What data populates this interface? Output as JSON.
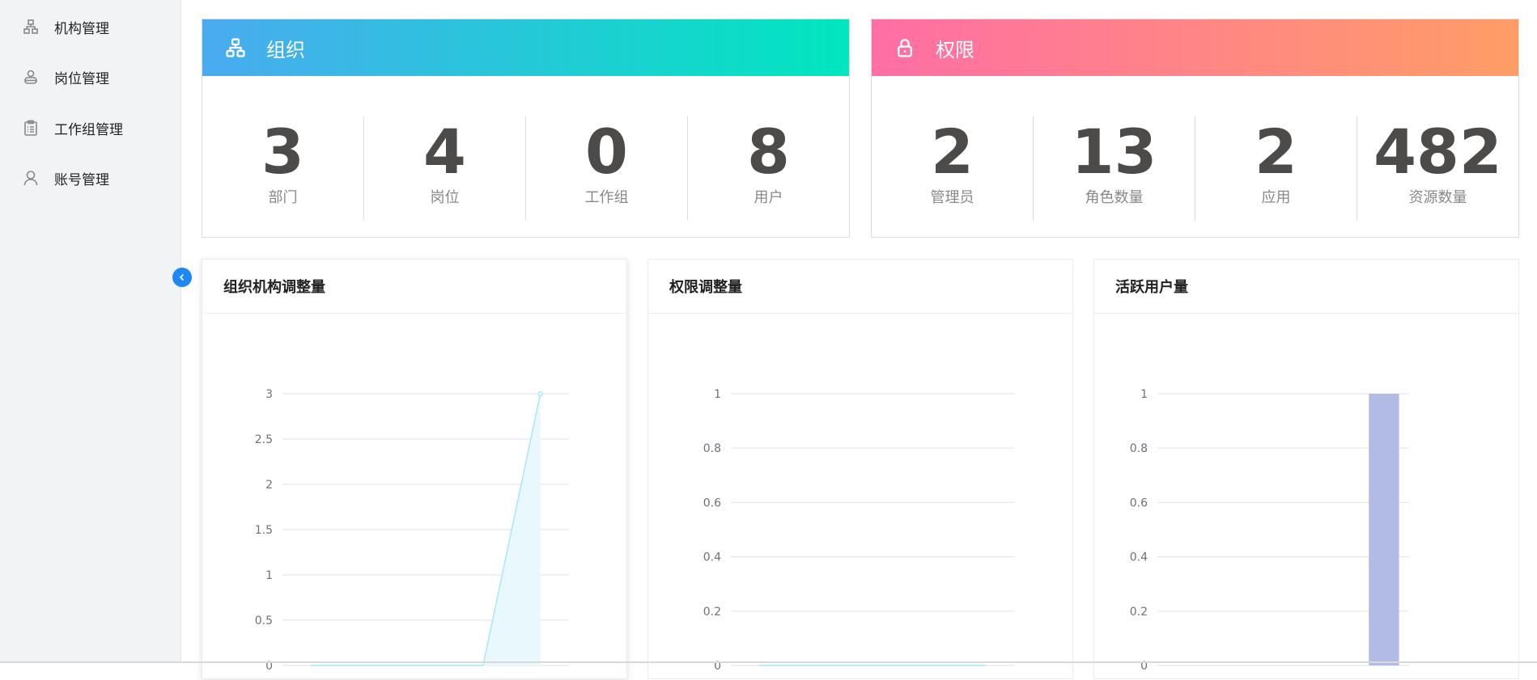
{
  "sidebar": {
    "items": [
      {
        "label": "机构管理",
        "icon": "org-tree-icon"
      },
      {
        "label": "岗位管理",
        "icon": "position-user-icon"
      },
      {
        "label": "工作组管理",
        "icon": "clipboard-icon"
      },
      {
        "label": "账号管理",
        "icon": "user-icon"
      }
    ]
  },
  "org_card": {
    "title": "组织",
    "icon": "org-tree-icon",
    "gradient": [
      "#4aabf0",
      "#00e6bf"
    ],
    "stats": [
      {
        "value": "3",
        "label": "部门"
      },
      {
        "value": "4",
        "label": "岗位"
      },
      {
        "value": "0",
        "label": "工作组"
      },
      {
        "value": "8",
        "label": "用户"
      }
    ]
  },
  "perm_card": {
    "title": "权限",
    "icon": "lock-icon",
    "gradient": [
      "#ff6ea5",
      "#ff9d66"
    ],
    "stats": [
      {
        "value": "2",
        "label": "管理员"
      },
      {
        "value": "13",
        "label": "角色数量"
      },
      {
        "value": "2",
        "label": "应用"
      },
      {
        "value": "482",
        "label": "资源数量"
      }
    ]
  },
  "charts": [
    {
      "title": "组织机构调整量"
    },
    {
      "title": "权限调整量"
    },
    {
      "title": "活跃用户量"
    }
  ],
  "chart_data": [
    {
      "type": "area",
      "values": [
        0,
        0,
        0,
        0,
        3
      ],
      "yticks": [
        "0",
        "0.5",
        "1",
        "1.5",
        "2",
        "2.5",
        "3"
      ],
      "ylim": [
        0,
        3
      ],
      "color": "#a9e7f7",
      "grid": true
    },
    {
      "type": "line",
      "values": [
        0,
        0,
        0,
        0,
        0
      ],
      "yticks": [
        "0",
        "0.2",
        "0.4",
        "0.6",
        "0.8",
        "1"
      ],
      "ylim": [
        0,
        1
      ],
      "color": "#a9e7f7",
      "grid": true
    },
    {
      "type": "bar",
      "values": [
        0,
        0,
        0,
        0,
        1
      ],
      "yticks": [
        "0",
        "0.2",
        "0.4",
        "0.6",
        "0.8",
        "1"
      ],
      "ylim": [
        0,
        1
      ],
      "color": "#b1bbe3",
      "grid": true
    }
  ]
}
